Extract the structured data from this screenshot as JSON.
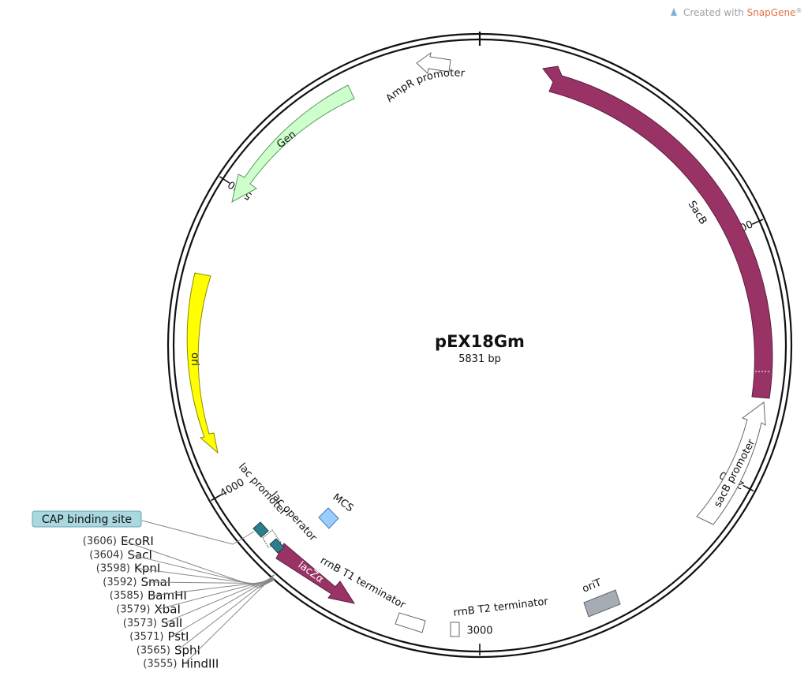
{
  "branding": {
    "prefix": "Created with ",
    "name": "SnapGene",
    "suffix": "®"
  },
  "plasmid": {
    "name": "pEX18Gm",
    "length_label": "5831 bp"
  },
  "ticks": [
    {
      "label": "1000",
      "angle": 66
    },
    {
      "label": "2000",
      "angle": 118
    },
    {
      "label": "3000",
      "angle": 180
    },
    {
      "label": "4000",
      "angle": 240
    },
    {
      "label": "5000",
      "angle": 303
    }
  ],
  "features": {
    "ampr_promoter": {
      "label": "AmpR promoter",
      "color": "#ffffff"
    },
    "gen": {
      "label": "Gen",
      "color": "#ccffcc"
    },
    "sacb": {
      "label": "SacB",
      "color": "#993366"
    },
    "sacb_promoter": {
      "label": "sacB promoter",
      "color": "#ffffff"
    },
    "ori": {
      "label": "ori",
      "color": "#ffff00"
    },
    "orit": {
      "label": "oriT",
      "color": "#a6acb3"
    },
    "rrnb_t2": {
      "label": "rrnB T2 terminator",
      "color": "#ffffff"
    },
    "rrnb_t1": {
      "label": "rrnB T1 terminator",
      "color": "#ffffff"
    },
    "lacza": {
      "label": "lacZα",
      "color": "#993366"
    },
    "mcs": {
      "label": "MCS",
      "color": "#99ccff"
    },
    "lac_operator": {
      "label": "lac operator",
      "color": "#ffffff"
    },
    "lac_promoter": {
      "label": "lac promoter",
      "color": "#ffffff"
    },
    "cap_site": {
      "label": "CAP binding site",
      "color": "#2e7d8c",
      "label_bg": "#a9d8e0"
    }
  },
  "sites": [
    {
      "pos": "(3606)",
      "name": "EcoRI"
    },
    {
      "pos": "(3604)",
      "name": "SacI"
    },
    {
      "pos": "(3598)",
      "name": "KpnI"
    },
    {
      "pos": "(3592)",
      "name": "SmaI"
    },
    {
      "pos": "(3585)",
      "name": "BamHI"
    },
    {
      "pos": "(3579)",
      "name": "XbaI"
    },
    {
      "pos": "(3573)",
      "name": "SalI"
    },
    {
      "pos": "(3571)",
      "name": "PstI"
    },
    {
      "pos": "(3565)",
      "name": "SphI"
    },
    {
      "pos": "(3555)",
      "name": "HindIII"
    }
  ]
}
